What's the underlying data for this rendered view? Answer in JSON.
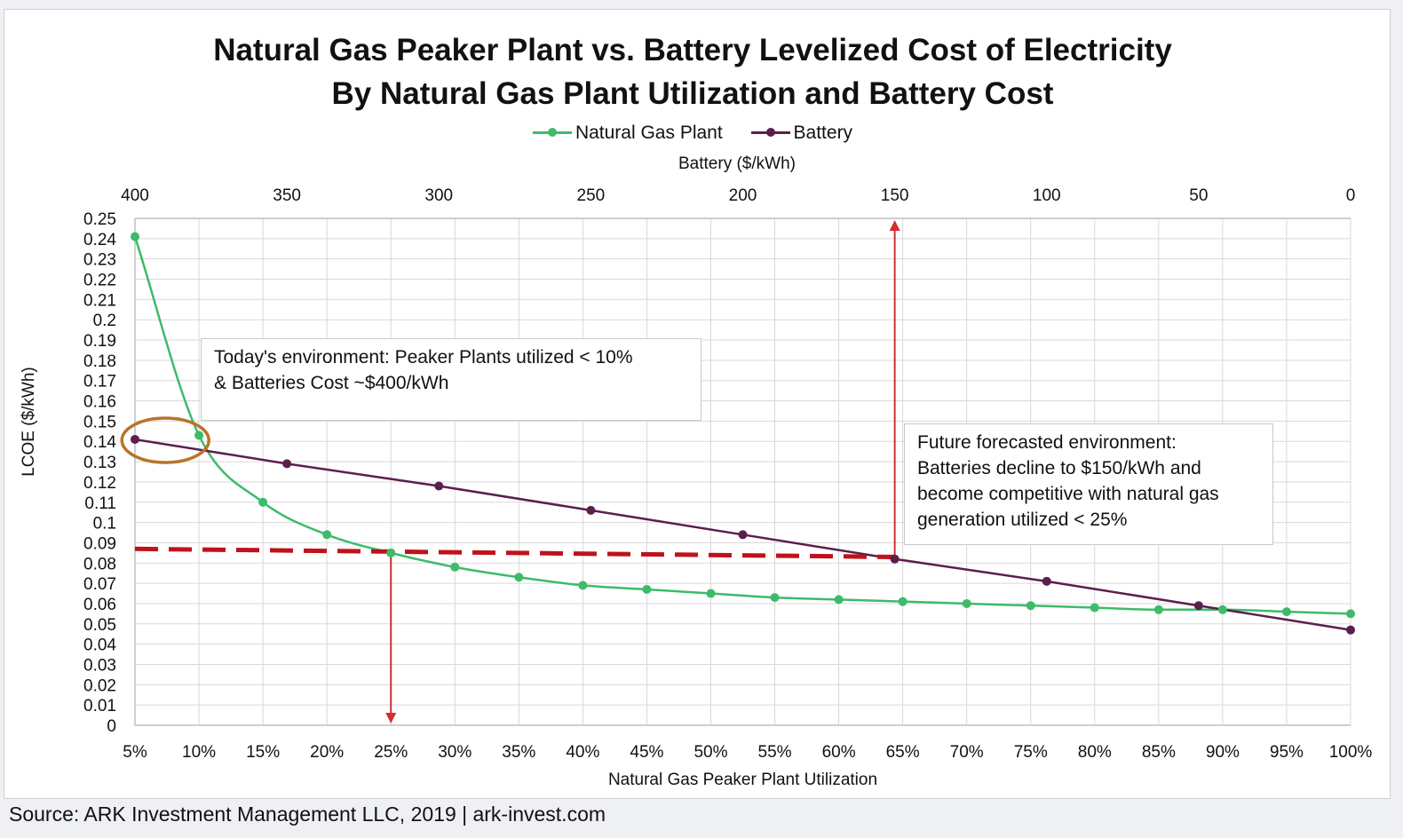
{
  "chart_data": {
    "type": "line",
    "title": "Natural Gas Peaker Plant vs. Battery Levelized Cost of Electricity",
    "subtitle": "By Natural Gas Plant Utilization and Battery Cost",
    "xlabel": "Natural Gas Peaker Plant Utilization",
    "x2label": "Battery ($/kWh)",
    "ylabel": "LCOE ($/kWh)",
    "ylim": [
      0,
      0.25
    ],
    "yticks": [
      "0",
      "0.01",
      "0.02",
      "0.03",
      "0.04",
      "0.05",
      "0.06",
      "0.07",
      "0.08",
      "0.09",
      "0.1",
      "0.11",
      "0.12",
      "0.13",
      "0.14",
      "0.15",
      "0.16",
      "0.17",
      "0.18",
      "0.19",
      "0.2",
      "0.21",
      "0.22",
      "0.23",
      "0.24",
      "0.25"
    ],
    "x_utilization": [
      5,
      10,
      15,
      20,
      25,
      30,
      35,
      40,
      45,
      50,
      55,
      60,
      65,
      70,
      75,
      80,
      85,
      90,
      95,
      100
    ],
    "x_utilization_labels": [
      "5%",
      "10%",
      "15%",
      "20%",
      "25%",
      "30%",
      "35%",
      "40%",
      "45%",
      "50%",
      "55%",
      "60%",
      "65%",
      "70%",
      "75%",
      "80%",
      "85%",
      "90%",
      "95%",
      "100%"
    ],
    "x_battery_ticks": [
      400,
      350,
      300,
      250,
      200,
      150,
      100,
      50,
      0
    ],
    "x_battery_labels": [
      "400",
      "350",
      "300",
      "250",
      "200",
      "150",
      "100",
      "50",
      "0"
    ],
    "x_battery_range": [
      400,
      0
    ],
    "grid": true,
    "legend_position": "top",
    "series": [
      {
        "name": "Natural Gas Plant",
        "color": "#3dbb6a",
        "axis": "utilization",
        "x": [
          5,
          10,
          15,
          20,
          25,
          30,
          35,
          40,
          45,
          50,
          55,
          60,
          65,
          70,
          75,
          80,
          85,
          90,
          95,
          100
        ],
        "y": [
          0.241,
          0.143,
          0.11,
          0.094,
          0.085,
          0.078,
          0.073,
          0.069,
          0.067,
          0.065,
          0.063,
          0.062,
          0.061,
          0.06,
          0.059,
          0.058,
          0.057,
          0.057,
          0.056,
          0.055
        ]
      },
      {
        "name": "Battery",
        "color": "#5a1f4d",
        "axis": "battery",
        "x": [
          400,
          350,
          300,
          250,
          200,
          150,
          100,
          50,
          0
        ],
        "y": [
          0.141,
          0.129,
          0.118,
          0.106,
          0.094,
          0.082,
          0.071,
          0.059,
          0.047
        ]
      }
    ],
    "reference_line": {
      "y_start": 0.087,
      "y_end": 0.083,
      "x_start_util": 5,
      "x_end_battery": 150,
      "color": "#c0121b",
      "style": "dashed"
    },
    "arrows": [
      {
        "direction": "down",
        "x_util": 25,
        "from_y": 0.085,
        "to_y": 0,
        "color": "#d32f2f"
      },
      {
        "direction": "up",
        "x_battery": 150,
        "from_y": 0.083,
        "to_y": 0.25,
        "color": "#d32f2f"
      }
    ],
    "highlight_ellipse": {
      "x_battery_center": 390,
      "y_center": 0.141,
      "color": "#b8742a"
    },
    "annotations": [
      {
        "lines": [
          "Today's environment: Peaker Plants utilized < 10%",
          "& Batteries Cost ~$400/kWh"
        ]
      },
      {
        "lines": [
          "Future forecasted environment:",
          "Batteries decline to $150/kWh and",
          "become competitive with natural gas",
          "generation utilized < 25%"
        ]
      }
    ]
  },
  "source_text": "Source: ARK Investment Management LLC, 2019 | ark-invest.com"
}
